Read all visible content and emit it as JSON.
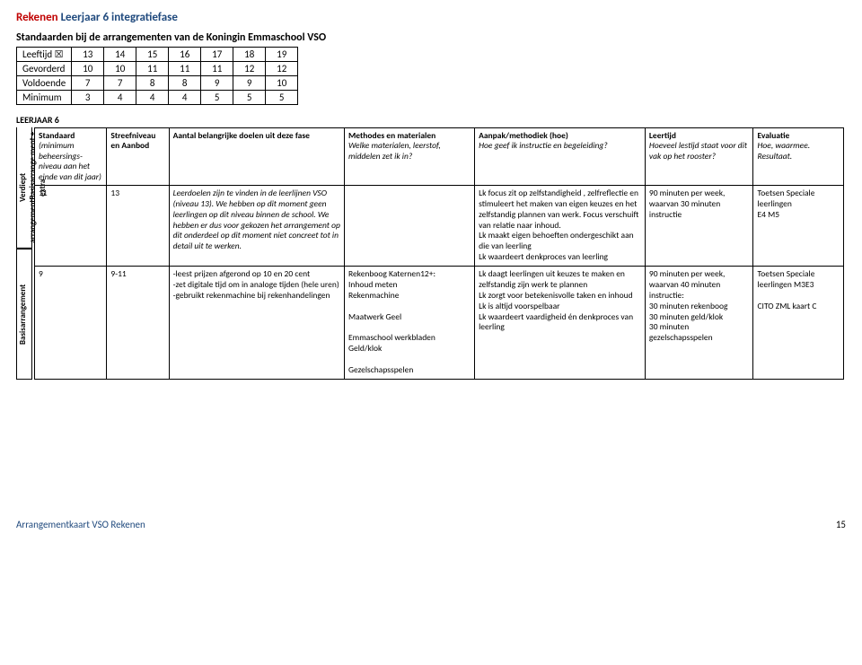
{
  "title": {
    "red": "Rekenen",
    "blue": "Leerjaar 6 integratiefase"
  },
  "subtitle": "Standaarden bij de arrangementen van de Koningin Emmaschool VSO",
  "standards": {
    "cols": [
      "Leeftijd ☒",
      "13",
      "14",
      "15",
      "16",
      "17",
      "18",
      "19"
    ],
    "rows": [
      {
        "label": "Gevorderd",
        "vals": [
          "10",
          "10",
          "11",
          "11",
          "11",
          "12",
          "12"
        ]
      },
      {
        "label": "Voldoende",
        "vals": [
          "7",
          "7",
          "8",
          "8",
          "9",
          "9",
          "10"
        ]
      },
      {
        "label": "Minimum",
        "vals": [
          "3",
          "4",
          "4",
          "4",
          "5",
          "5",
          "5"
        ]
      }
    ]
  },
  "leerjaar_label": "LEERJAAR 6",
  "vlabels": {
    "top": "Verdiept arrangementBasisarrange ment + extra",
    "bottom": "Basisarrangement"
  },
  "big_headers": {
    "c1": {
      "main": "Standaard",
      "sub": "(minimum beheersings-niveau aan het einde van dit jaar)"
    },
    "c2": {
      "main": "Streefniveau en Aanbod"
    },
    "c3": {
      "main": "Aantal belangrijke doelen uit deze fase"
    },
    "c4": {
      "main": "Methodes en materialen",
      "sub": "Welke materialen, leerstof, middelen zet ik in?"
    },
    "c5": {
      "main": "Aanpak/methodiek (hoe)",
      "sub": "Hoe geef ik instructie en begeleiding?"
    },
    "c6": {
      "main": "Leertijd",
      "sub": "Hoeveel lestijd staat voor dit vak op het rooster?"
    },
    "c7": {
      "main": "Evaluatie",
      "sub": "Hoe, waarmee. Resultaat."
    }
  },
  "big_rows": [
    {
      "c1": "11",
      "c2": "13",
      "c3": "Leerdoelen zijn te vinden in de leerlijnen VSO (niveau 13). We hebben op dit moment geen leerlingen op dit niveau binnen de school. We hebben er dus voor gekozen het arrangement op dit onderdeel op dit moment niet concreet tot in detail uit te werken.",
      "c4": "",
      "c5": "Lk focus zit op zelfstandigheid , zelfreflectie en stimuleert het maken van eigen keuzes en het zelfstandig plannen van werk.  Focus verschuift van relatie naar inhoud.\nLk maakt eigen behoeften ondergeschikt aan die van leerling\nLk waardeert denkproces van leerling",
      "c6": "90 minuten per week, waarvan 30 minuten  instructie",
      "c7": "Toetsen Speciale leerlingen\nE4 M5"
    },
    {
      "c1": "9",
      "c2": "9-11",
      "c3": "-leest prijzen afgerond op 10 en 20 cent\n-zet digitale tijd om in analoge tijden (hele uren)\n-gebruikt rekenmachine bij rekenhandelingen",
      "c4": "Rekenboog Katernen12+:\nInhoud meten\nRekenmachine\n\nMaatwerk Geel\n\nEmmaschool werkbladen Geld/klok\n\nGezelschapsspelen",
      "c5": "Lk daagt leerlingen uit keuzes te maken en zelfstandig zijn werk te plannen\nLk zorgt voor betekenisvolle taken en inhoud\nLk is altijd voorspelbaar\nLk waardeert  vaardigheid én denkproces van leerling",
      "c6": "90 minuten per week, waarvan 40 minuten instructie:\n30 minuten rekenboog\n30 minuten geld/klok\n 30 minuten gezelschapsspelen",
      "c7": "Toetsen Speciale leerlingen M3E3\n\nCITO ZML kaart  C"
    }
  ],
  "footer": {
    "left": "Arrangementkaart VSO Rekenen",
    "page": "15"
  }
}
